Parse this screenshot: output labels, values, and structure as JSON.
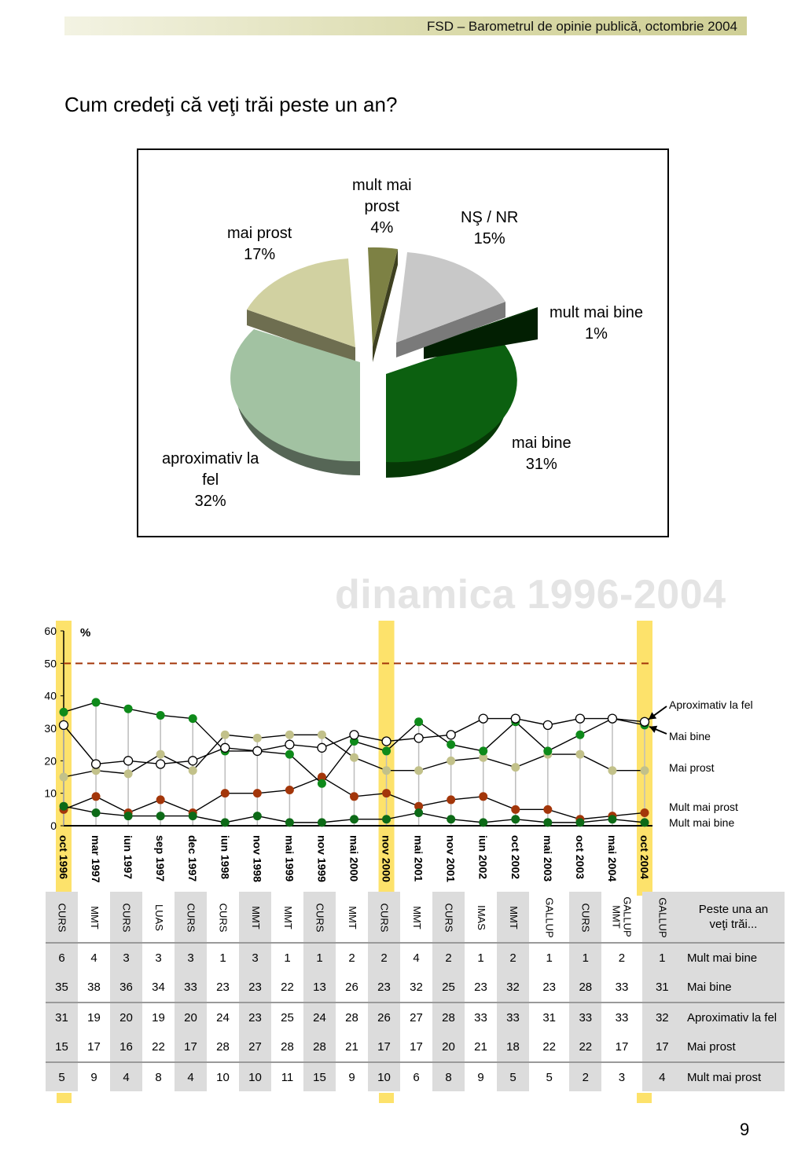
{
  "header": {
    "text": "FSD  –  Barometrul de opinie publică, octombrie 2004"
  },
  "title": "Cum credeţi că veţi trăi peste un an?",
  "watermark": "dinamica 1996-2004",
  "page_number": "9",
  "colors": {
    "mai_bine": "#0c6010",
    "mult_mai_bine": "#063306",
    "ns_nr": "#c8c8c8",
    "mult_mai_prost": "#7d8144",
    "mai_prost": "#d1d1a1",
    "aproximativ": "#a2c2a2",
    "line_mai_bine": "#0e8a1a",
    "line_mai_prost": "#c2c18a",
    "line_mult_mai_prost": "#a3360a",
    "line_mult_mai_bine": "#0d6a17",
    "highlight": "#fde26b",
    "ref_line": "#a3360a"
  },
  "chart_data": [
    {
      "type": "pie",
      "slices": [
        {
          "label": "mult mai\nprost\n4%",
          "value": 4
        },
        {
          "label": "NŞ / NR\n15%",
          "value": 15
        },
        {
          "label": "mult mai bine\n1%",
          "value": 1
        },
        {
          "label": "mai bine\n31%",
          "value": 31
        },
        {
          "label": "aproximativ la\nfel\n32%",
          "value": 32
        },
        {
          "label": "mai prost\n17%",
          "value": 17
        }
      ]
    },
    {
      "type": "line",
      "ylabel": "%",
      "ylim": [
        0,
        60
      ],
      "yticks": [
        0,
        10,
        20,
        30,
        40,
        50,
        60
      ],
      "reference_line": 50,
      "x": [
        "oct 1996",
        "mar 1997",
        "iun 1997",
        "sep 1997",
        "dec 1997",
        "iun 1998",
        "nov 1998",
        "mai 1999",
        "nov 1999",
        "mai 2000",
        "nov 2000",
        "mai 2001",
        "nov 2001",
        "iun 2002",
        "oct 2002",
        "mai 2003",
        "oct 2003",
        "mai 2004",
        "oct 2004"
      ],
      "highlighted": [
        "oct 1996",
        "nov 2000",
        "oct 2004"
      ],
      "sources": [
        "CURS",
        "MMT",
        "CURS",
        "LUAS",
        "CURS",
        "CURS",
        "MMT",
        "MMT",
        "CURS",
        "MMT",
        "CURS",
        "MMT",
        "CURS",
        "IMAS",
        "MMT",
        "GALLUP",
        "CURS",
        "GALLUP\nMMT",
        "GALLUP"
      ],
      "table_header": "Peste una an\nveţi trăi...",
      "series": [
        {
          "name": "Mult mai bine",
          "values": [
            6,
            4,
            3,
            3,
            3,
            1,
            3,
            1,
            1,
            2,
            2,
            4,
            2,
            1,
            2,
            1,
            1,
            2,
            1
          ]
        },
        {
          "name": "Mai bine",
          "values": [
            35,
            38,
            36,
            34,
            33,
            23,
            23,
            22,
            13,
            26,
            23,
            32,
            25,
            23,
            32,
            23,
            28,
            33,
            31
          ]
        },
        {
          "name": "Aproximativ la fel",
          "values": [
            31,
            19,
            20,
            19,
            20,
            24,
            23,
            25,
            24,
            28,
            26,
            27,
            28,
            33,
            33,
            31,
            33,
            33,
            32
          ]
        },
        {
          "name": "Mai prost",
          "values": [
            15,
            17,
            16,
            22,
            17,
            28,
            27,
            28,
            28,
            21,
            17,
            17,
            20,
            21,
            18,
            22,
            22,
            17,
            17
          ]
        },
        {
          "name": "Mult mai prost",
          "values": [
            5,
            9,
            4,
            8,
            4,
            10,
            10,
            11,
            15,
            9,
            10,
            6,
            8,
            9,
            5,
            5,
            2,
            3,
            4
          ]
        }
      ]
    }
  ]
}
